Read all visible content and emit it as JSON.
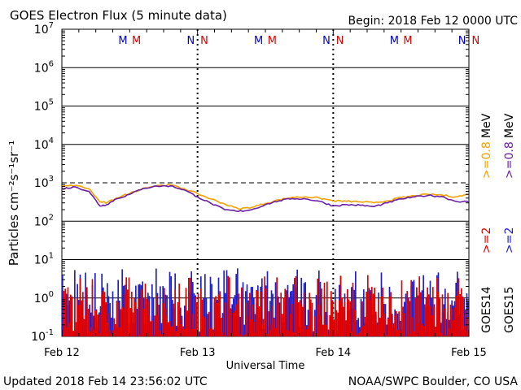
{
  "header": {
    "title": "GOES Electron Flux (5 minute data)",
    "begin": "Begin: 2018 Feb 12 0000 UTC"
  },
  "footer": {
    "updated": "Updated 2018 Feb 14 23:56:02 UTC",
    "credit": "NOAA/SWPC Boulder, CO USA"
  },
  "markers": [
    {
      "day": 0.45,
      "text": "M",
      "color": "#0000cc"
    },
    {
      "day": 0.55,
      "text": "M",
      "color": "#dd0000"
    },
    {
      "day": 0.95,
      "text": "N",
      "color": "#0000cc"
    },
    {
      "day": 1.05,
      "text": "N",
      "color": "#dd0000"
    },
    {
      "day": 1.45,
      "text": "M",
      "color": "#0000cc"
    },
    {
      "day": 1.55,
      "text": "M",
      "color": "#dd0000"
    },
    {
      "day": 1.95,
      "text": "N",
      "color": "#0000cc"
    },
    {
      "day": 2.05,
      "text": "N",
      "color": "#dd0000"
    },
    {
      "day": 2.45,
      "text": "M",
      "color": "#0000cc"
    },
    {
      "day": 2.55,
      "text": "M",
      "color": "#dd0000"
    },
    {
      "day": 2.95,
      "text": "N",
      "color": "#0000cc"
    },
    {
      "day": 3.05,
      "text": "N",
      "color": "#dd0000"
    }
  ],
  "legend": {
    "goes14": {
      "sat": "GOES14",
      "e2": ">=2",
      "e08": ">=0.8",
      "unit": "MeV",
      "e2_color": "#e00000",
      "e08_color": "#f5a000"
    },
    "goes15": {
      "sat": "GOES15",
      "e2": ">=2",
      "e08": ">=0.8",
      "unit": "MeV",
      "e2_color": "#2020cc",
      "e08_color": "#6a1fa6"
    }
  },
  "chart_data": {
    "type": "line",
    "title": "GOES Electron Flux (5 minute data)",
    "xlabel": "Universal Time",
    "ylabel": "Particles cm⁻²s⁻¹sr⁻¹",
    "yscale": "log",
    "ylim": [
      0.1,
      10000000
    ],
    "xlim_days": [
      0,
      3
    ],
    "x_ticks": [
      "Feb 12",
      "Feb 13",
      "Feb 14",
      "Feb 15"
    ],
    "y_ticks": [
      {
        "base": "10",
        "exp": "7"
      },
      {
        "base": "10",
        "exp": "6"
      },
      {
        "base": "10",
        "exp": "5"
      },
      {
        "base": "10",
        "exp": "4"
      },
      {
        "base": "10",
        "exp": "3"
      },
      {
        "base": "10",
        "exp": "2"
      },
      {
        "base": "10",
        "exp": "1"
      },
      {
        "base": "10",
        "exp": "0"
      },
      {
        "base": "10",
        "exp": "-1"
      }
    ],
    "threshold_line": 1000,
    "series": [
      {
        "name": "GOES14 >=0.8 MeV",
        "color": "#f5a000",
        "x": [
          0,
          0.1,
          0.2,
          0.28,
          0.33,
          0.4,
          0.5,
          0.6,
          0.7,
          0.8,
          0.9,
          1.0,
          1.1,
          1.2,
          1.3,
          1.4,
          1.5,
          1.6,
          1.7,
          1.8,
          1.9,
          2.0,
          2.1,
          2.2,
          2.3,
          2.4,
          2.5,
          2.6,
          2.7,
          2.8,
          2.9,
          3.0
        ],
        "y": [
          800,
          860,
          700,
          320,
          300,
          400,
          530,
          720,
          850,
          880,
          700,
          520,
          380,
          280,
          210,
          230,
          290,
          360,
          420,
          430,
          400,
          340,
          330,
          320,
          300,
          340,
          410,
          460,
          500,
          480,
          430,
          500
        ]
      },
      {
        "name": "GOES15 >=0.8 MeV",
        "color": "#6a1fa6",
        "x": [
          0,
          0.1,
          0.2,
          0.28,
          0.33,
          0.4,
          0.5,
          0.6,
          0.7,
          0.8,
          0.9,
          1.0,
          1.1,
          1.2,
          1.3,
          1.4,
          1.5,
          1.6,
          1.7,
          1.8,
          1.9,
          2.0,
          2.1,
          2.2,
          2.3,
          2.4,
          2.5,
          2.6,
          2.7,
          2.8,
          2.9,
          3.0
        ],
        "y": [
          700,
          780,
          600,
          250,
          270,
          380,
          500,
          720,
          820,
          830,
          660,
          430,
          290,
          200,
          180,
          200,
          270,
          340,
          390,
          380,
          330,
          250,
          270,
          260,
          240,
          300,
          380,
          430,
          470,
          440,
          330,
          320
        ]
      }
    ],
    "noise_series": [
      {
        "name": "GOES15 >=2 MeV",
        "color": "#2020cc",
        "baseline": 0.1,
        "typical_max": 3,
        "peak_max": 6
      },
      {
        "name": "GOES14 >=2 MeV",
        "color": "#e00000",
        "baseline": 0.1,
        "typical_max": 2,
        "peak_max": 4
      }
    ]
  }
}
